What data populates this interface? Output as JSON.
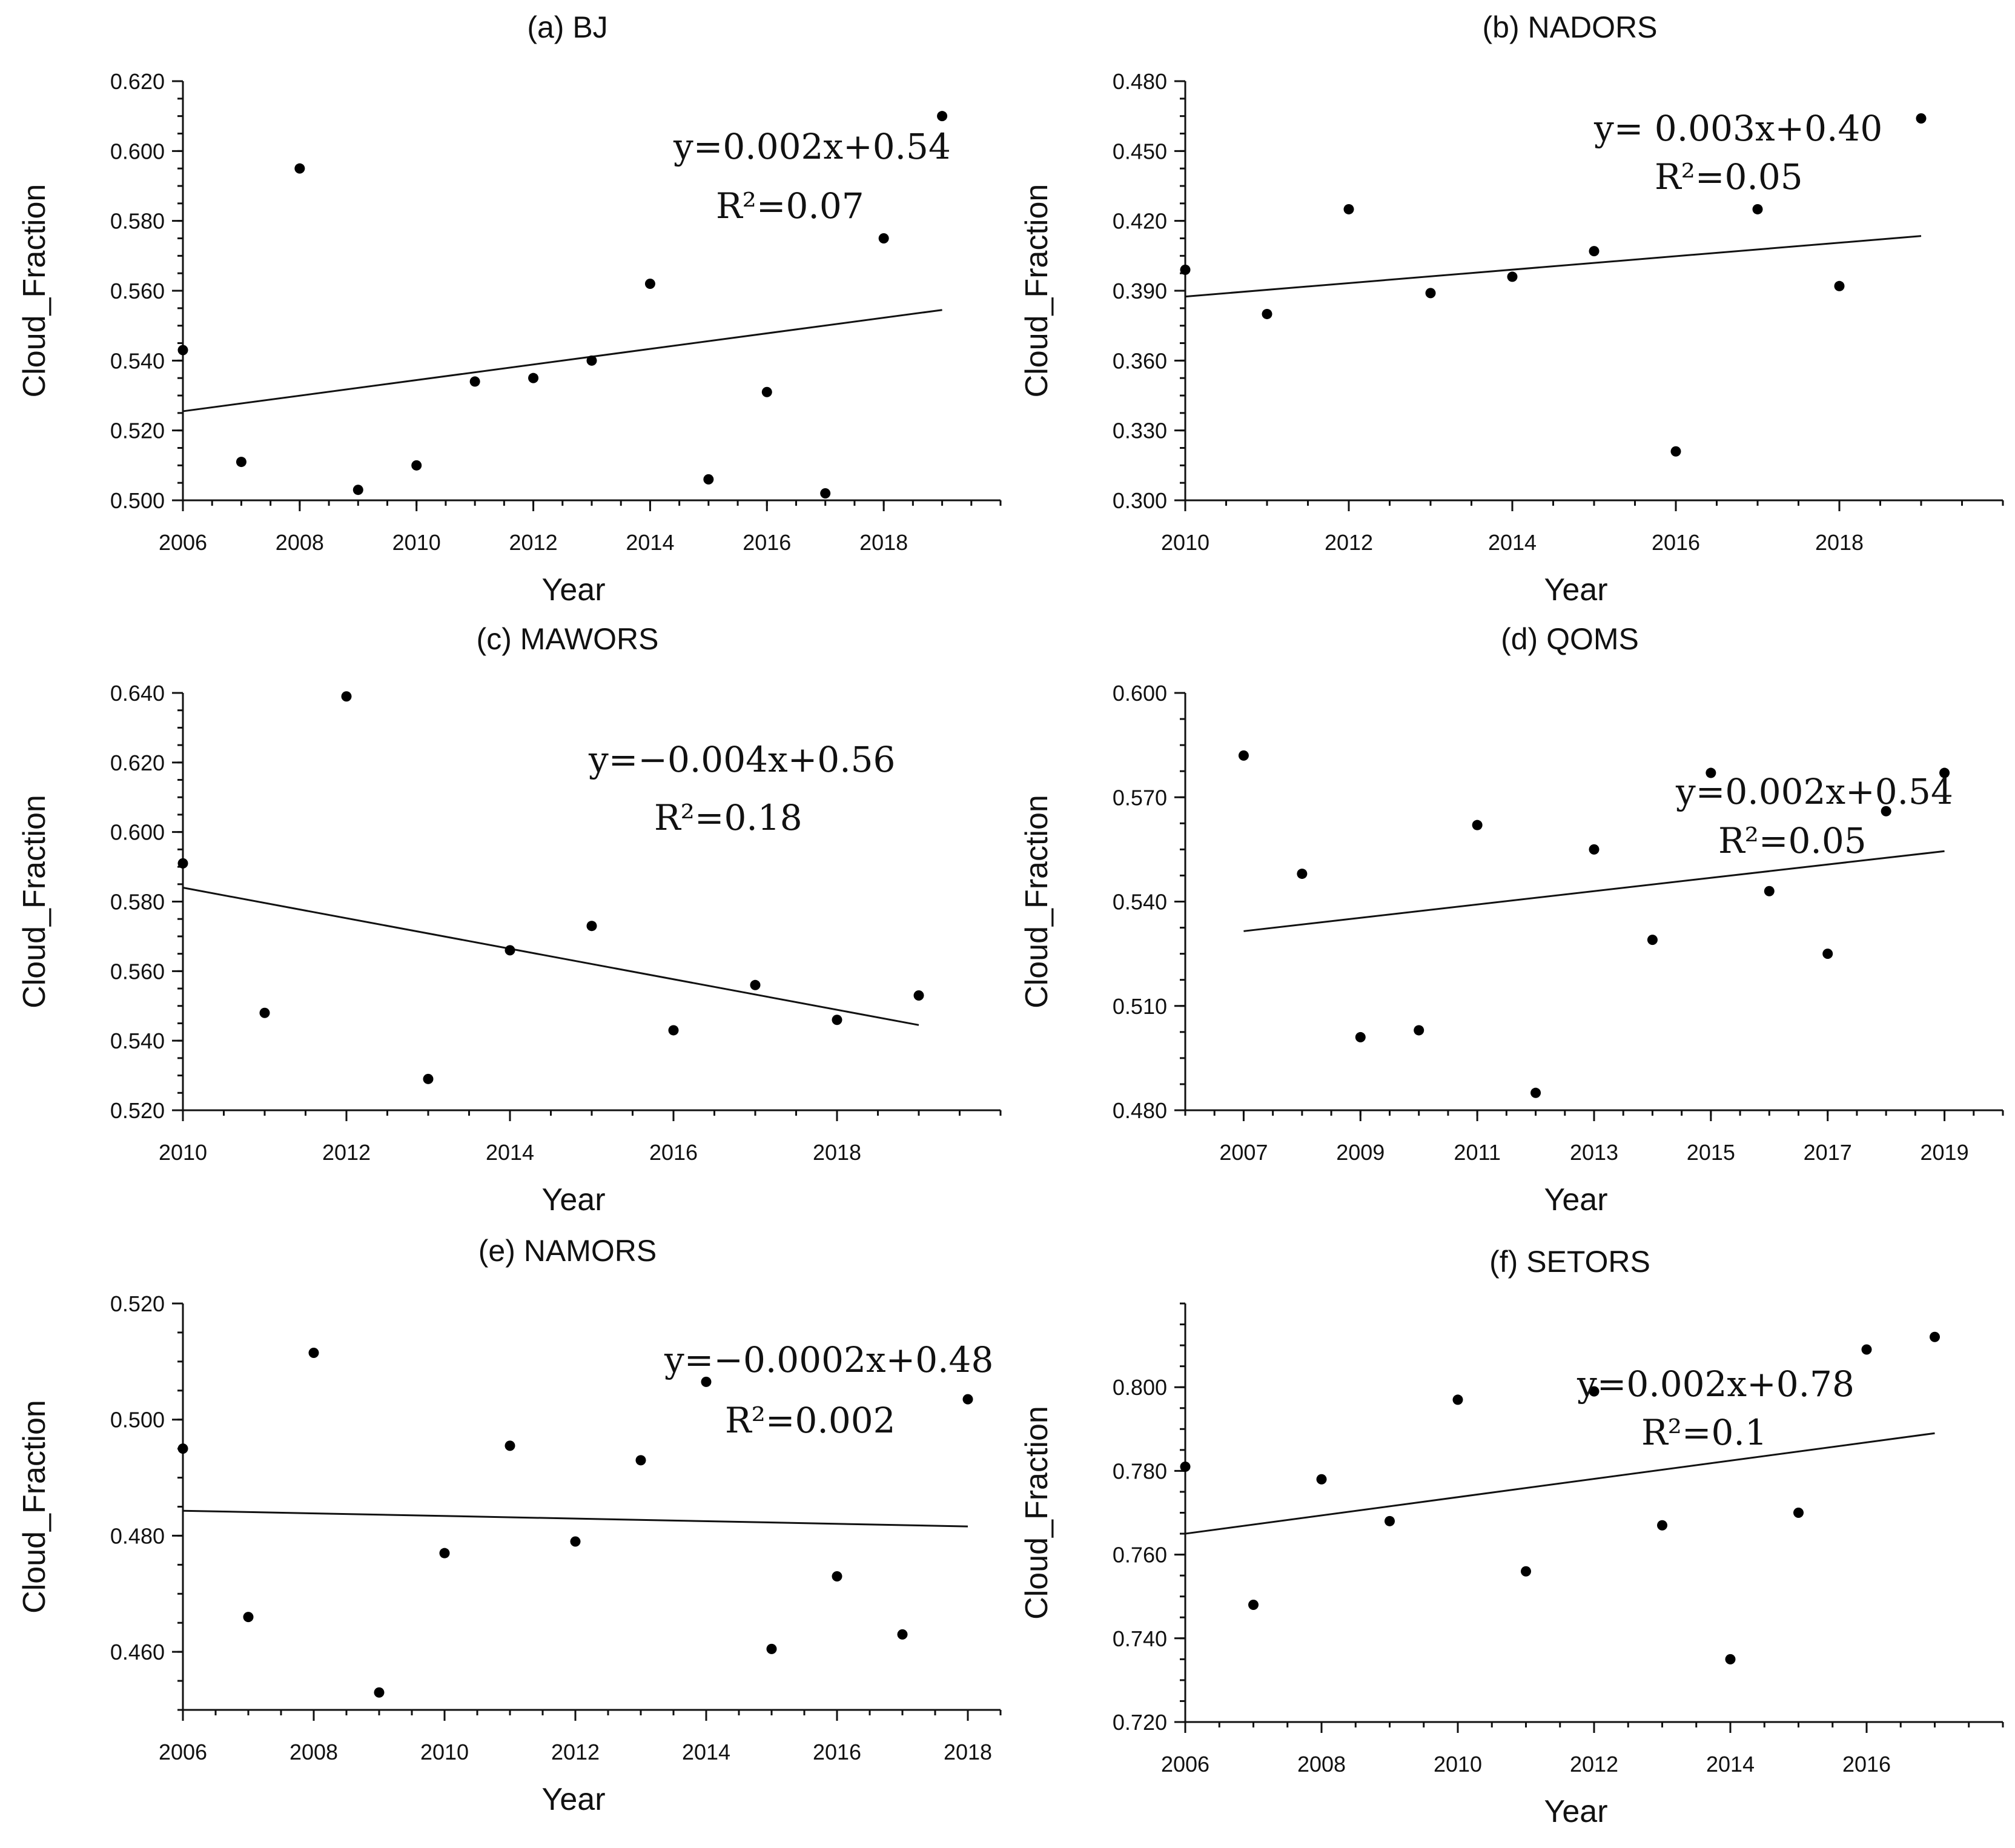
{
  "chart_data": [
    {
      "type": "scatter",
      "title": "(a) BJ",
      "xlabel": "Year",
      "ylabel": "Cloud_Fraction",
      "xlim": [
        2006,
        2020
      ],
      "ylim": [
        0.5,
        0.62
      ],
      "xticks": [
        2006,
        2008,
        2010,
        2012,
        2014,
        2016,
        2018
      ],
      "yticks": [
        "0.500",
        "0.520",
        "0.540",
        "0.560",
        "0.580",
        "0.600",
        "0.620"
      ],
      "x": [
        2006,
        2007,
        2008,
        2009,
        2010,
        2011,
        2012,
        2013,
        2014,
        2015,
        2016,
        2017,
        2018,
        2019
      ],
      "y": [
        0.543,
        0.511,
        0.595,
        0.503,
        0.51,
        0.534,
        0.535,
        0.54,
        0.562,
        0.506,
        0.531,
        0.502,
        0.575,
        0.61
      ],
      "fit": {
        "x0": 2006,
        "y0": 0.5255,
        "x1": 2019,
        "y1": 0.5545
      },
      "equation": "y=0.002x+0.54",
      "r2": "R²=0.07"
    },
    {
      "type": "scatter",
      "title": "(b) NADORS",
      "xlabel": "Year",
      "ylabel": "Cloud_Fraction",
      "xlim": [
        2010,
        2020
      ],
      "ylim": [
        0.3,
        0.48
      ],
      "xticks": [
        2010,
        2012,
        2014,
        2016,
        2018
      ],
      "yticks": [
        "0.300",
        "0.330",
        "0.360",
        "0.390",
        "0.420",
        "0.450",
        "0.480"
      ],
      "x": [
        2010,
        2011,
        2012,
        2013,
        2014,
        2015,
        2016,
        2017,
        2018,
        2019
      ],
      "y": [
        0.399,
        0.38,
        0.425,
        0.389,
        0.396,
        0.407,
        0.321,
        0.425,
        0.392,
        0.464
      ],
      "fit": {
        "x0": 2010,
        "y0": 0.3875,
        "x1": 2019,
        "y1": 0.4135
      },
      "equation": "y=  0.003x+0.40",
      "r2": "R²=0.05"
    },
    {
      "type": "scatter",
      "title": "(c) MAWORS",
      "xlabel": "Year",
      "ylabel": "Cloud_Fraction",
      "xlim": [
        2010,
        2020
      ],
      "ylim": [
        0.52,
        0.64
      ],
      "xticks": [
        2010,
        2012,
        2014,
        2016,
        2018
      ],
      "yticks": [
        "0.520",
        "0.540",
        "0.560",
        "0.580",
        "0.600",
        "0.620",
        "0.640"
      ],
      "x": [
        2010,
        2011,
        2012,
        2013,
        2014,
        2015,
        2016,
        2017,
        2018,
        2019
      ],
      "y": [
        0.591,
        0.548,
        0.639,
        0.529,
        0.566,
        0.573,
        0.543,
        0.556,
        0.546,
        0.553
      ],
      "fit": {
        "x0": 2010,
        "y0": 0.584,
        "x1": 2019,
        "y1": 0.5445
      },
      "equation": "y=−0.004x+0.56",
      "r2": "R²=0.18"
    },
    {
      "type": "scatter",
      "title": "(d) QOMS",
      "xlabel": "Year",
      "ylabel": "Cloud_Fraction",
      "xlim": [
        2006,
        2020
      ],
      "ylim": [
        0.48,
        0.6
      ],
      "xticks": [
        2007,
        2009,
        2011,
        2013,
        2015,
        2017,
        2019
      ],
      "yticks": [
        "0.480",
        "0.510",
        "0.540",
        "0.570",
        "0.600"
      ],
      "x": [
        2007,
        2008,
        2009,
        2010,
        2011,
        2012,
        2013,
        2014,
        2015,
        2016,
        2017,
        2018,
        2019
      ],
      "y": [
        0.582,
        0.548,
        0.501,
        0.503,
        0.562,
        0.485,
        0.555,
        0.529,
        0.577,
        0.543,
        0.525,
        0.566,
        0.577
      ],
      "fit": {
        "x0": 2007,
        "y0": 0.5315,
        "x1": 2019,
        "y1": 0.5545
      },
      "equation": "y=0.002x+0.54",
      "r2": "R²=0.05"
    },
    {
      "type": "scatter",
      "title": "(e) NAMORS",
      "xlabel": "Year",
      "ylabel": "Cloud_Fraction",
      "xlim": [
        2006,
        2018.5
      ],
      "ylim": [
        0.45,
        0.52
      ],
      "xticks": [
        2006,
        2008,
        2010,
        2012,
        2014,
        2016,
        2018
      ],
      "yticks": [
        "0.460",
        "0.480",
        "0.500",
        "0.520"
      ],
      "x": [
        2006,
        2007,
        2008,
        2009,
        2010,
        2011,
        2012,
        2013,
        2014,
        2015,
        2016,
        2017,
        2018
      ],
      "y": [
        0.495,
        0.466,
        0.5115,
        0.453,
        0.477,
        0.4955,
        0.479,
        0.493,
        0.5065,
        0.4605,
        0.473,
        0.463,
        0.5035
      ],
      "fit": {
        "x0": 2006,
        "y0": 0.4843,
        "x1": 2018,
        "y1": 0.4816
      },
      "equation": "y=−0.0002x+0.48",
      "r2": "R²=0.002"
    },
    {
      "type": "scatter",
      "title": "(f) SETORS",
      "xlabel": "Year",
      "ylabel": "Cloud_Fraction",
      "xlim": [
        2006,
        2018
      ],
      "ylim": [
        0.72,
        0.82
      ],
      "xticks": [
        2006,
        2008,
        2010,
        2012,
        2014,
        2016
      ],
      "yticks": [
        "0.720",
        "0.740",
        "0.760",
        "0.780",
        "0.800"
      ],
      "x": [
        2006,
        2007,
        2008,
        2009,
        2010,
        2011,
        2012,
        2013,
        2014,
        2015,
        2016,
        2017
      ],
      "y": [
        0.781,
        0.748,
        0.778,
        0.768,
        0.797,
        0.756,
        0.799,
        0.767,
        0.735,
        0.77,
        0.809,
        0.812
      ],
      "fit": {
        "x0": 2006,
        "y0": 0.765,
        "x1": 2017,
        "y1": 0.789
      },
      "equation": "y=0.002x+0.78",
      "r2": "R²=0.1"
    }
  ]
}
